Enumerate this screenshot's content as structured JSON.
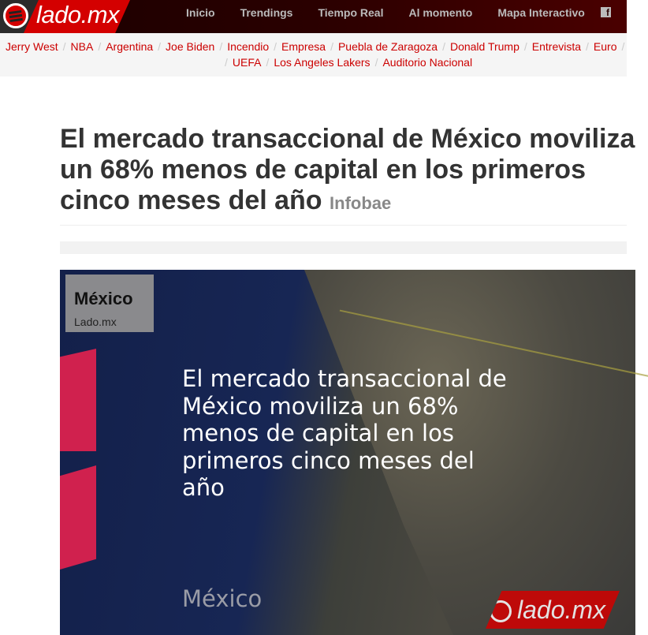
{
  "header": {
    "logo": "lado.mx",
    "nav": [
      "Inicio",
      "Trendings",
      "Tiempo Real",
      "Al momento",
      "Mapa Interactivo"
    ],
    "facebook_icon": "facebook-icon"
  },
  "tags": {
    "line1": [
      "Jerry West",
      "NBA",
      "Argentina",
      "Joe Biden",
      "Incendio",
      "Empresa",
      "Puebla de Zaragoza",
      "Donald Trump",
      "Entrevista",
      "Euro"
    ],
    "line2": [
      "UEFA",
      "Los Angeles Lakers",
      "Auditorio Nacional"
    ]
  },
  "article": {
    "title": "El mercado transaccional de México moviliza un 68% menos de capital en los primeros cinco meses del año",
    "source": "Infobae"
  },
  "image": {
    "box_title": "México",
    "box_sub": "Lado.mx",
    "headline": "El mercado transaccional de México moviliza un 68% menos de capital en los primeros cinco meses del año",
    "location": "México",
    "watermark": "lado.mx"
  },
  "colors": {
    "accent": "#cc0000",
    "header_bg": "#2a0000",
    "tag_bg": "#f5f5f5"
  }
}
